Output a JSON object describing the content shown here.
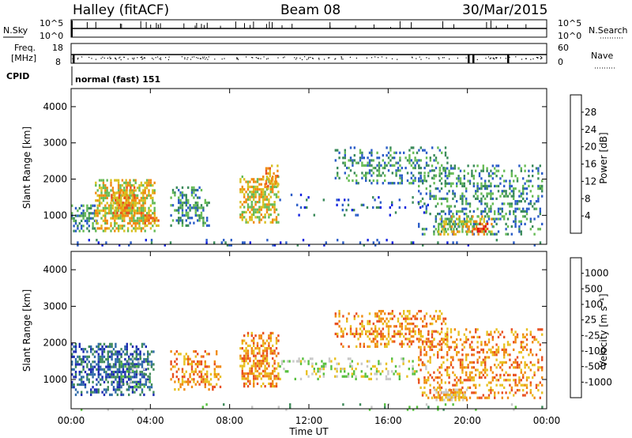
{
  "header": {
    "station": "Halley (fitACF)",
    "beam": "Beam 08",
    "date": "30/Mar/2015"
  },
  "top_panels": {
    "nsky": {
      "label": "N.Sky",
      "tick_top": "10^5",
      "tick_bottom": "10^0"
    },
    "nsearch": {
      "label": "N.Search",
      "tick_top": "10^5",
      "tick_bottom": "10^0"
    },
    "freq": {
      "label_line1": "Freq.",
      "label_line2": "[MHz]",
      "tick_top": "18",
      "tick_bottom": "8"
    },
    "nave": {
      "label": "Nave",
      "tick_top": "60",
      "tick_bottom": "0"
    },
    "cpid": {
      "label": "CPID",
      "value": "normal (fast) 151"
    }
  },
  "chart_data": [
    {
      "type": "heatmap",
      "name": "power-panel",
      "ylabel": "Slant Range [km]",
      "xlabel": "",
      "xlim": [
        0,
        24
      ],
      "ylim": [
        200,
        4500
      ],
      "yticks": [
        "1000",
        "2000",
        "3000",
        "4000"
      ],
      "colorbar": {
        "label": "Power [dB]",
        "ticks": [
          "4",
          "8",
          "12",
          "16",
          "20",
          "24",
          "28"
        ],
        "colors": [
          "#1020e0",
          "#2a5cc8",
          "#3a8a5a",
          "#66bb55",
          "#d8c020",
          "#f08a10",
          "#e85020",
          "#e01010"
        ]
      },
      "regions": [
        {
          "t0": 0.0,
          "t1": 1.3,
          "r0": 600,
          "r1": 1300,
          "dens": 0.55,
          "level": 2
        },
        {
          "t0": 1.2,
          "t1": 4.2,
          "r0": 600,
          "r1": 2000,
          "dens": 0.7,
          "level": 4
        },
        {
          "t0": 2.0,
          "t1": 3.2,
          "r0": 1000,
          "r1": 1800,
          "dens": 0.6,
          "level": 5
        },
        {
          "t0": 3.5,
          "t1": 4.4,
          "r0": 700,
          "r1": 1100,
          "dens": 0.5,
          "level": 5
        },
        {
          "t0": 5.0,
          "t1": 7.0,
          "r0": 700,
          "r1": 1800,
          "dens": 0.45,
          "level": 2
        },
        {
          "t0": 8.5,
          "t1": 10.5,
          "r0": 800,
          "r1": 2100,
          "dens": 0.6,
          "level": 4
        },
        {
          "t0": 9.8,
          "t1": 10.4,
          "r0": 1700,
          "r1": 2400,
          "dens": 0.5,
          "level": 5
        },
        {
          "t0": 10.5,
          "t1": 18.0,
          "r0": 1000,
          "r1": 1600,
          "dens": 0.12,
          "level": 1
        },
        {
          "t0": 13.3,
          "t1": 19.0,
          "r0": 1900,
          "r1": 2900,
          "dens": 0.38,
          "level": 2
        },
        {
          "t0": 17.5,
          "t1": 23.8,
          "r0": 500,
          "r1": 2400,
          "dens": 0.35,
          "level": 2
        },
        {
          "t0": 18.5,
          "t1": 21.3,
          "r0": 500,
          "r1": 1000,
          "dens": 0.5,
          "level": 4
        },
        {
          "t0": 20.2,
          "t1": 21.0,
          "r0": 550,
          "r1": 800,
          "dens": 0.6,
          "level": 7
        },
        {
          "t0": 0.0,
          "t1": 24.0,
          "r0": 200,
          "r1": 350,
          "dens": 0.1,
          "level": 1
        }
      ]
    },
    {
      "type": "heatmap",
      "name": "velocity-panel",
      "ylabel": "Slant Range [km]",
      "xlabel": "Time UT",
      "xlim": [
        0,
        24
      ],
      "ylim": [
        200,
        4500
      ],
      "xticks": [
        "00:00",
        "04:00",
        "08:00",
        "12:00",
        "16:00",
        "20:00",
        "00:00"
      ],
      "yticks": [
        "1000",
        "2000",
        "3000",
        "4000"
      ],
      "colorbar": {
        "label": "Velocity [m s⁻¹]",
        "ticks": [
          "1000",
          "500",
          "100",
          "25",
          "-25",
          "-100",
          "-500",
          "-1000"
        ],
        "colors": [
          "#1a2ab0",
          "#2f6aa8",
          "#3f8a5a",
          "#58c040",
          "#c8c8c8",
          "#e8c020",
          "#f08a10",
          "#e85020",
          "#e01010"
        ]
      },
      "regions": [
        {
          "t0": 0.0,
          "t1": 4.2,
          "r0": 600,
          "r1": 2000,
          "dens": 0.6,
          "level": 1
        },
        {
          "t0": 2.5,
          "t1": 4.0,
          "r0": 800,
          "r1": 1600,
          "dens": 0.3,
          "level": 3
        },
        {
          "t0": 5.0,
          "t1": 7.5,
          "r0": 700,
          "r1": 1800,
          "dens": 0.45,
          "level": 6
        },
        {
          "t0": 8.5,
          "t1": 10.5,
          "r0": 800,
          "r1": 2300,
          "dens": 0.65,
          "level": 6
        },
        {
          "t0": 10.5,
          "t1": 18.0,
          "r0": 1000,
          "r1": 1600,
          "dens": 0.25,
          "level": 4
        },
        {
          "t0": 13.3,
          "t1": 19.0,
          "r0": 1900,
          "r1": 2900,
          "dens": 0.4,
          "level": 6
        },
        {
          "t0": 17.5,
          "t1": 23.8,
          "r0": 500,
          "r1": 2400,
          "dens": 0.35,
          "level": 6
        },
        {
          "t0": 18.3,
          "t1": 20.0,
          "r0": 450,
          "r1": 750,
          "dens": 0.75,
          "level": 5
        },
        {
          "t0": 0.0,
          "t1": 24.0,
          "r0": 200,
          "r1": 350,
          "dens": 0.08,
          "level": 3
        }
      ]
    }
  ]
}
